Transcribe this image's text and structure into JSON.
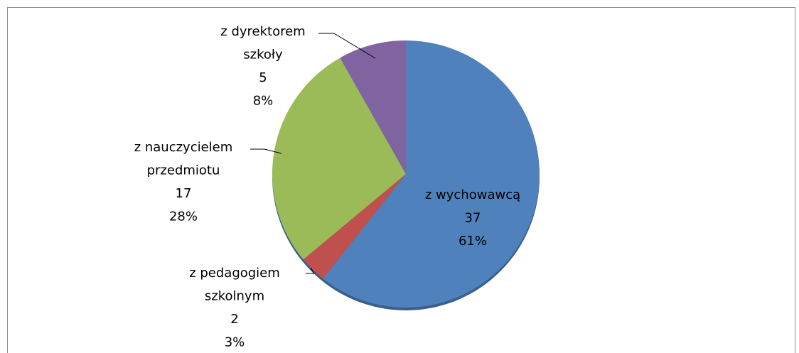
{
  "chart_data": {
    "type": "pie",
    "categories": [
      [
        "z wychowawcą"
      ],
      [
        "z pedagogiem",
        "szkolnym"
      ],
      [
        "z nauczycielem",
        "przedmiotu"
      ],
      [
        "z dyrektorem",
        "szkoły"
      ]
    ],
    "values": [
      37,
      2,
      17,
      5
    ],
    "percent_labels": [
      "61%",
      "3%",
      "28%",
      "8%"
    ],
    "colors": [
      "#4f81bd",
      "#c0504d",
      "#9bbb59",
      "#8064a2"
    ]
  }
}
